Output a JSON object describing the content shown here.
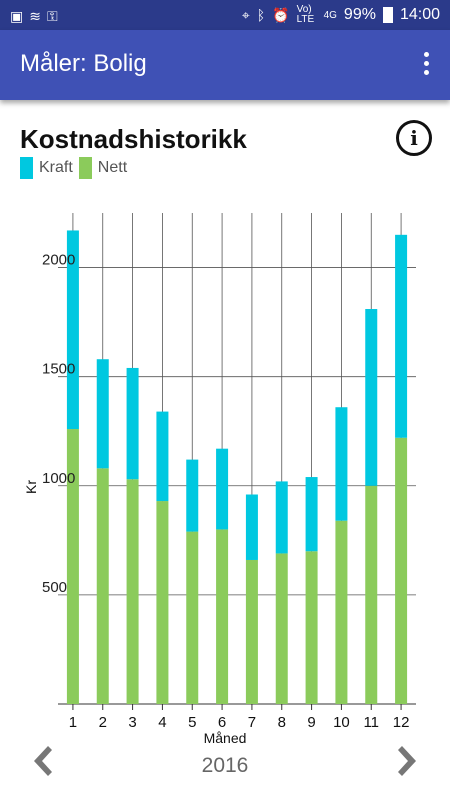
{
  "statusbar": {
    "left_icons": [
      "image-icon",
      "wifi-icon",
      "key-icon"
    ],
    "right_icons": [
      "location-icon",
      "bluetooth-icon",
      "alarm-icon"
    ],
    "volte": "Vo) LTE",
    "network": "4G",
    "battery": "99%",
    "time": "14:00"
  },
  "appbar": {
    "title": "Måler: Bolig"
  },
  "header": {
    "title": "Kostnadshistorikk"
  },
  "legend": [
    {
      "label": "Kraft",
      "color": "#00c8e0"
    },
    {
      "label": "Nett",
      "color": "#8bcb5b"
    }
  ],
  "navigation": {
    "year": "2016"
  },
  "chart_data": {
    "type": "bar",
    "stacked": true,
    "categories": [
      "1",
      "2",
      "3",
      "4",
      "5",
      "6",
      "7",
      "8",
      "9",
      "10",
      "11",
      "12"
    ],
    "series": [
      {
        "name": "Nett",
        "color": "#8bcb5b",
        "values": [
          1260,
          1080,
          1030,
          930,
          790,
          800,
          660,
          690,
          700,
          840,
          1000,
          1220
        ]
      },
      {
        "name": "Kraft",
        "color": "#00c8e0",
        "values": [
          910,
          500,
          510,
          410,
          330,
          370,
          300,
          330,
          340,
          520,
          810,
          930
        ]
      }
    ],
    "xlabel": "Måned",
    "ylabel": "Kr",
    "ylim": [
      0,
      2250
    ],
    "yticks": [
      500,
      1000,
      1500,
      2000
    ],
    "grid": true
  }
}
